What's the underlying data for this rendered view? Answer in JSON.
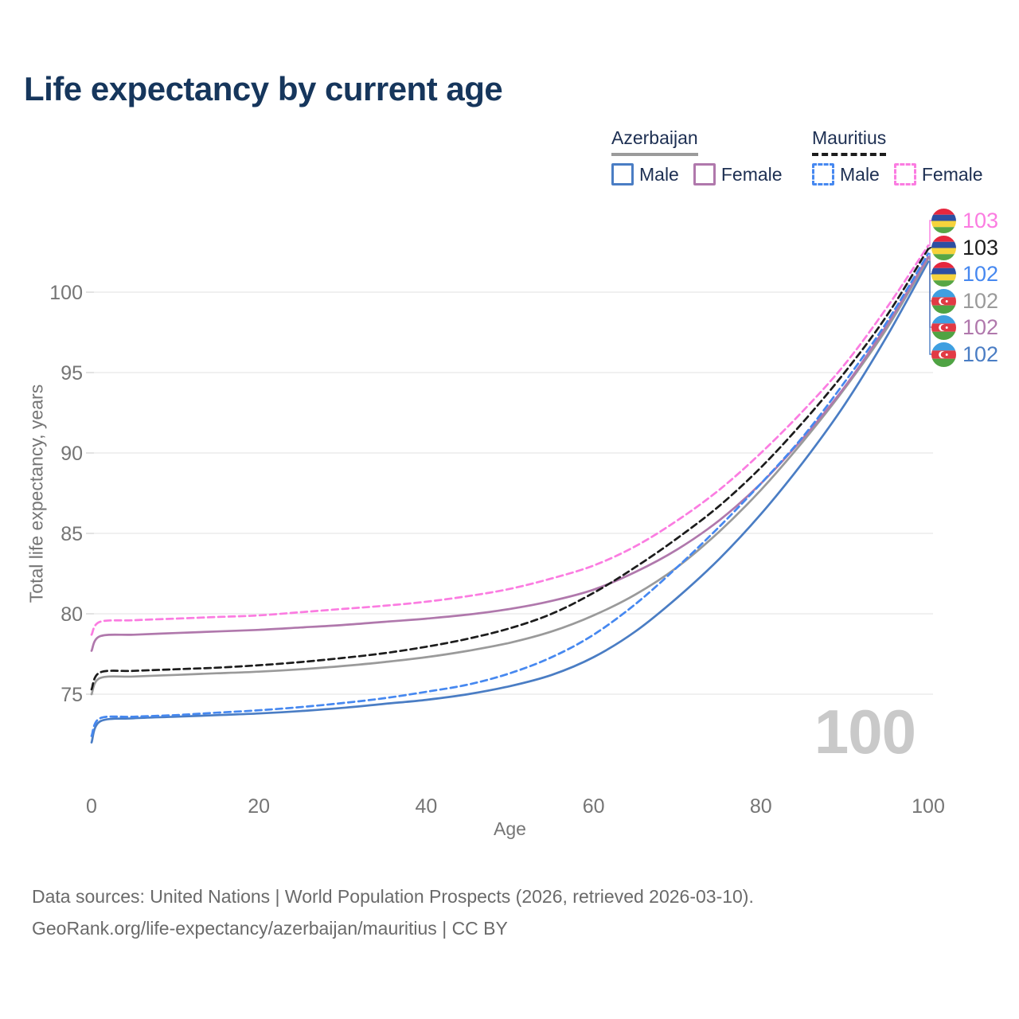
{
  "title": "Life expectancy by current age",
  "legend": {
    "groups": [
      {
        "country": "Azerbaijan",
        "style": "solid",
        "underline_color": "#9b9b9b",
        "items": [
          {
            "label": "Male",
            "color": "#4a7dc4",
            "dash": false
          },
          {
            "label": "Female",
            "color": "#b078ac",
            "dash": false
          }
        ]
      },
      {
        "country": "Mauritius",
        "style": "dashed",
        "underline_color": "#1c1c1c",
        "items": [
          {
            "label": "Male",
            "color": "#4688f0",
            "dash": true
          },
          {
            "label": "Female",
            "color": "#fb7ce1",
            "dash": true
          }
        ]
      }
    ]
  },
  "chart_data": {
    "type": "line",
    "title": "Life expectancy by current age",
    "xlabel": "Age",
    "ylabel": "Total life expectancy, years",
    "x": [
      0,
      1,
      5,
      10,
      15,
      20,
      25,
      30,
      35,
      40,
      45,
      50,
      55,
      60,
      65,
      70,
      75,
      80,
      85,
      90,
      95,
      100
    ],
    "xticks": [
      0,
      20,
      40,
      60,
      80,
      100
    ],
    "yticks": [
      75,
      80,
      85,
      90,
      95,
      100
    ],
    "xlim": [
      0,
      100
    ],
    "ylim": [
      71.5,
      103.5
    ],
    "grid": "horizontal",
    "legend_position": "top-right",
    "series": [
      {
        "name": "Azerbaijan Male",
        "country": "Azerbaijan",
        "sex": "Male",
        "color": "#4a7dc4",
        "dash": false,
        "values": [
          72.0,
          73.3,
          73.5,
          73.6,
          73.7,
          73.8,
          73.95,
          74.15,
          74.4,
          74.65,
          75.0,
          75.5,
          76.2,
          77.3,
          78.9,
          81.0,
          83.4,
          86.2,
          89.4,
          93.0,
          97.2,
          101.9
        ]
      },
      {
        "name": "Azerbaijan Total",
        "country": "Azerbaijan",
        "sex": "Total",
        "color": "#9a9a9a",
        "dash": false,
        "values": [
          75.0,
          76.0,
          76.1,
          76.2,
          76.3,
          76.4,
          76.55,
          76.75,
          77.0,
          77.3,
          77.7,
          78.2,
          78.9,
          79.9,
          81.2,
          82.9,
          85.1,
          87.7,
          90.7,
          94.0,
          97.7,
          102.1
        ]
      },
      {
        "name": "Azerbaijan Female",
        "country": "Azerbaijan",
        "sex": "Female",
        "color": "#b078ac",
        "dash": false,
        "values": [
          77.7,
          78.6,
          78.7,
          78.8,
          78.9,
          79.0,
          79.15,
          79.3,
          79.5,
          79.7,
          79.95,
          80.3,
          80.8,
          81.5,
          82.6,
          84.0,
          85.8,
          88.1,
          90.9,
          94.1,
          97.9,
          102.2
        ]
      },
      {
        "name": "Mauritius Male",
        "country": "Mauritius",
        "sex": "Male",
        "color": "#4688f0",
        "dash": true,
        "values": [
          72.4,
          73.5,
          73.6,
          73.7,
          73.85,
          74.0,
          74.2,
          74.45,
          74.75,
          75.15,
          75.6,
          76.3,
          77.3,
          78.7,
          80.6,
          82.9,
          85.4,
          88.1,
          91.0,
          94.4,
          98.1,
          102.4
        ]
      },
      {
        "name": "Mauritius Total",
        "country": "Mauritius",
        "sex": "Total",
        "color": "#1c1c1c",
        "dash": true,
        "values": [
          75.3,
          76.35,
          76.45,
          76.55,
          76.65,
          76.8,
          77.0,
          77.25,
          77.55,
          77.95,
          78.45,
          79.1,
          80.0,
          81.3,
          82.9,
          84.7,
          86.7,
          89.1,
          91.9,
          95.0,
          98.5,
          102.7
        ]
      },
      {
        "name": "Mauritius Female",
        "country": "Mauritius",
        "sex": "Female",
        "color": "#fb7ce1",
        "dash": true,
        "values": [
          78.7,
          79.5,
          79.6,
          79.7,
          79.8,
          79.9,
          80.1,
          80.3,
          80.5,
          80.75,
          81.1,
          81.55,
          82.2,
          83.0,
          84.2,
          85.8,
          87.7,
          90.0,
          92.6,
          95.5,
          99.0,
          102.9
        ]
      }
    ]
  },
  "right_labels": [
    {
      "value": "103",
      "series": "Mauritius Female",
      "country": "Mauritius",
      "color": "#fb7ce1"
    },
    {
      "value": "103",
      "series": "Mauritius Total",
      "country": "Mauritius",
      "color": "#1c1c1c"
    },
    {
      "value": "102",
      "series": "Mauritius Male",
      "country": "Mauritius",
      "color": "#4688f0"
    },
    {
      "value": "102",
      "series": "Azerbaijan Total",
      "country": "Azerbaijan",
      "color": "#9a9a9a"
    },
    {
      "value": "102",
      "series": "Azerbaijan Female",
      "country": "Azerbaijan",
      "color": "#b078ac"
    },
    {
      "value": "102",
      "series": "Azerbaijan Male",
      "country": "Azerbaijan",
      "color": "#4a7dc4"
    }
  ],
  "flags": {
    "mauritius": [
      "#e6273e",
      "#2d4fa2",
      "#f6d33c",
      "#57a645"
    ],
    "azerbaijan": [
      "#3f9fe0",
      "#e23a44",
      "#4fa343"
    ]
  },
  "colors": {
    "title": "#16365c",
    "axis_text": "#757575",
    "gridline": "#ebebeb",
    "watermark": "#c9c9c9",
    "footer_text": "#6a6a6a"
  },
  "watermark": "100",
  "footer": {
    "line1": "Data sources: United Nations | World Population Prospects (2026, retrieved 2026-03-10).",
    "line2": "GeoRank.org/life-expectancy/azerbaijan/mauritius | CC BY"
  }
}
